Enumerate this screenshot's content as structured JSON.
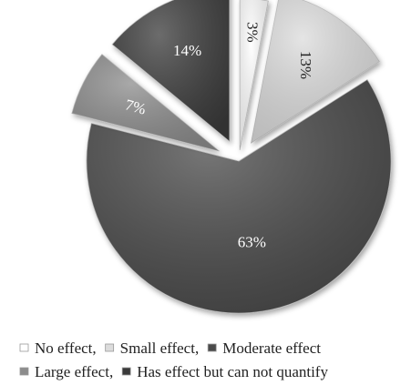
{
  "chart_data": {
    "type": "pie",
    "style": "exploded 3D-shaded pie",
    "slices": [
      {
        "label": "No effect",
        "value": 3,
        "value_label": "3%",
        "color": "#ffffff",
        "label_color": "#222222"
      },
      {
        "label": "Small effect",
        "value": 13,
        "value_label": "13%",
        "color": "#dcdcdc",
        "label_color": "#222222"
      },
      {
        "label": "Moderate effect",
        "value": 63,
        "value_label": "63%",
        "color": "#4a4a4a",
        "label_color": "#ffffff"
      },
      {
        "label": "Large effect",
        "value": 7,
        "value_label": "7%",
        "color": "#8c8c8c",
        "label_color": "#ffffff"
      },
      {
        "label": "Has effect but can not quantify",
        "value": 14,
        "value_label": "14%",
        "color": "#3a3a3a",
        "label_color": "#ffffff"
      }
    ],
    "legend": {
      "position": "bottom",
      "rows": [
        [
          "No effect,",
          "Small effect,",
          "Moderate effect"
        ],
        [
          "Large effect,",
          "Has effect but can not quantify"
        ]
      ]
    }
  }
}
